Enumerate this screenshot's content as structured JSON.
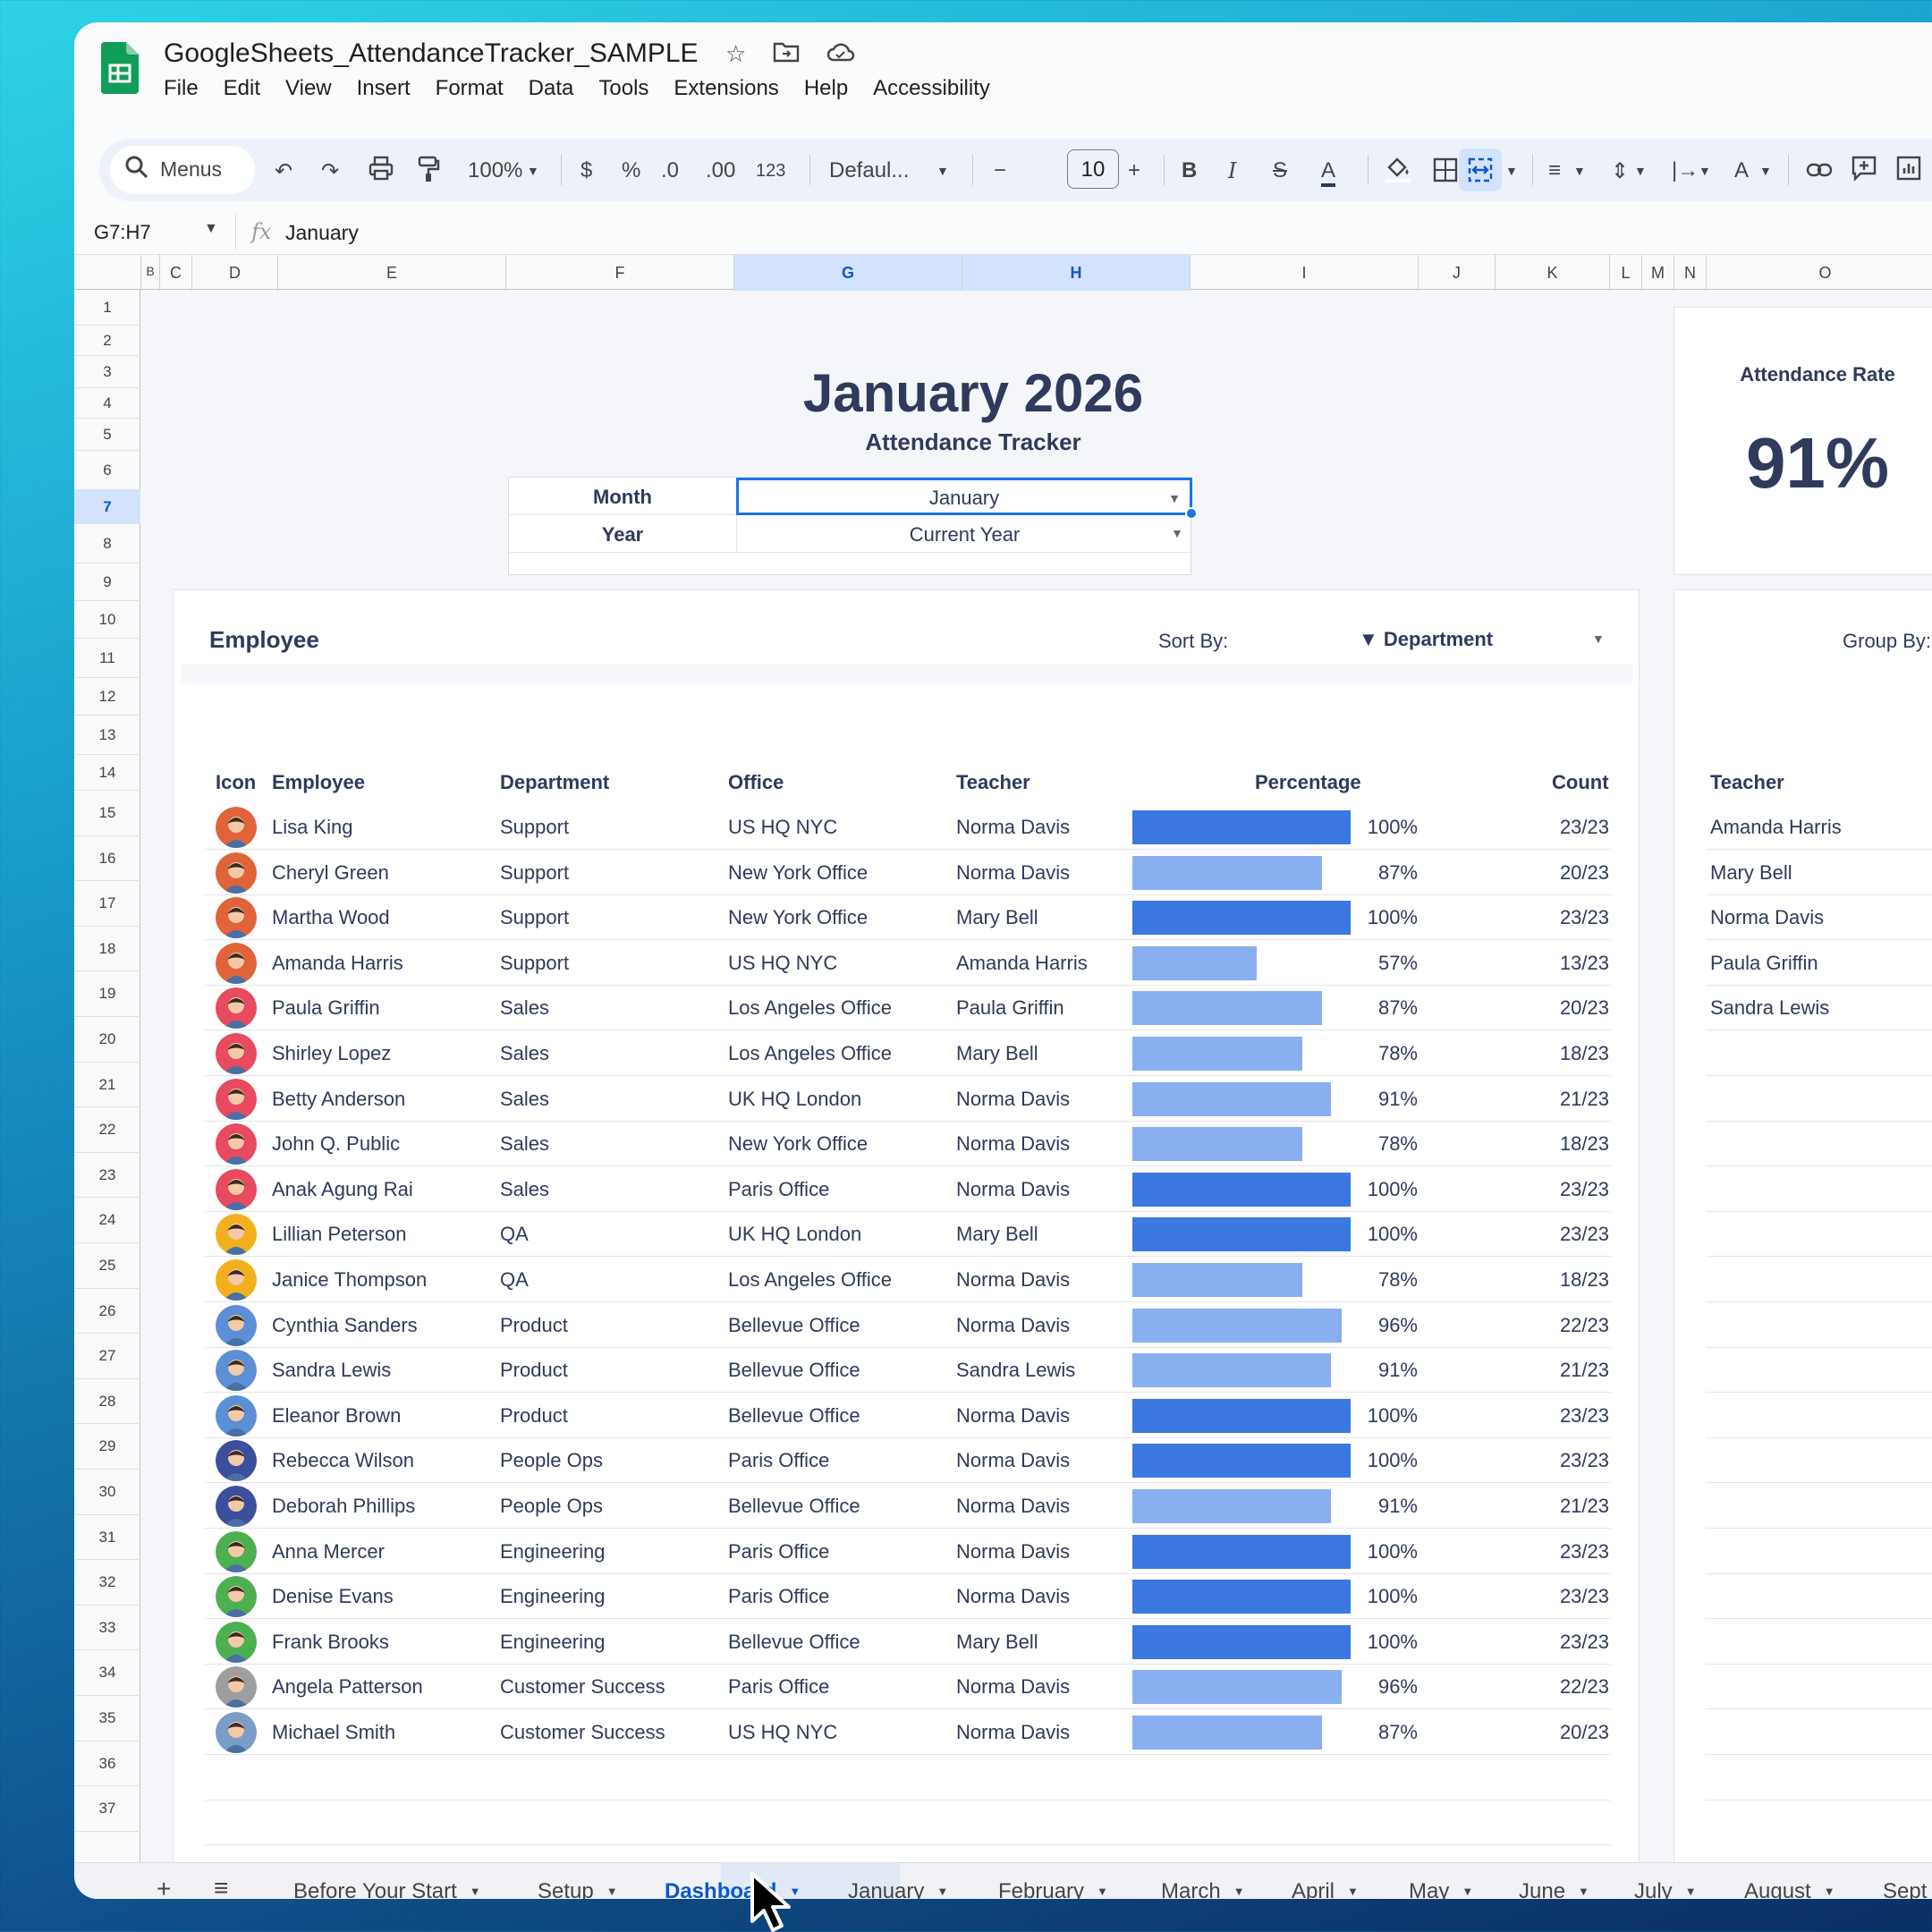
{
  "app": {
    "doc_title": "GoogleSheets_AttendanceTracker_SAMPLE",
    "menu": [
      "File",
      "Edit",
      "View",
      "Insert",
      "Format",
      "Data",
      "Tools",
      "Extensions",
      "Help",
      "Accessibility"
    ]
  },
  "toolbar": {
    "search_label": "Menus",
    "zoom": "100%",
    "currency": "$",
    "percent": "%",
    "dec_decrease": ".0",
    "dec_increase": ".00",
    "number_format": "123",
    "font": "Defaul...",
    "font_size": "10",
    "bold": "B",
    "italic": "I"
  },
  "formula_bar": {
    "name_box": "G7:H7",
    "fx": "fx",
    "value": "January"
  },
  "columns": [
    "B",
    "C",
    "D",
    "E",
    "F",
    "G",
    "H",
    "I",
    "J",
    "K",
    "L",
    "M",
    "N",
    "O"
  ],
  "rows": [
    "1",
    "2",
    "3",
    "4",
    "5",
    "6",
    "7",
    "8",
    "9",
    "10",
    "11",
    "12",
    "13",
    "14",
    "15",
    "16",
    "17",
    "18",
    "19",
    "20",
    "21",
    "22",
    "23",
    "24",
    "25",
    "26",
    "27",
    "28",
    "29",
    "30",
    "31",
    "32",
    "33",
    "34",
    "35",
    "36",
    "37"
  ],
  "dashboard": {
    "title": "January 2026",
    "subtitle": "Attendance Tracker",
    "month_label": "Month",
    "month_value": "January",
    "year_label": "Year",
    "year_value": "Current Year",
    "rate_label": "Attendance Rate",
    "rate_value": "91%",
    "employee_heading": "Employee",
    "sort_label": "Sort By:",
    "sort_value": "Department",
    "group_label": "Group By:",
    "headers": {
      "icon": "Icon",
      "employee": "Employee",
      "department": "Department",
      "office": "Office",
      "teacher": "Teacher",
      "percentage": "Percentage",
      "count": "Count"
    },
    "employees": [
      {
        "name": "Lisa King",
        "department": "Support",
        "office": "US HQ NYC",
        "teacher": "Norma Davis",
        "percent": 100,
        "percent_label": "100%",
        "count": "23/23",
        "avatar_color": "#e0633a"
      },
      {
        "name": "Cheryl Green",
        "department": "Support",
        "office": "New York Office",
        "teacher": "Norma Davis",
        "percent": 87,
        "percent_label": "87%",
        "count": "20/23",
        "avatar_color": "#e0633a"
      },
      {
        "name": "Martha Wood",
        "department": "Support",
        "office": "New York Office",
        "teacher": "Mary Bell",
        "percent": 100,
        "percent_label": "100%",
        "count": "23/23",
        "avatar_color": "#e0633a"
      },
      {
        "name": "Amanda Harris",
        "department": "Support",
        "office": "US HQ NYC",
        "teacher": "Amanda Harris",
        "percent": 57,
        "percent_label": "57%",
        "count": "13/23",
        "avatar_color": "#e0633a"
      },
      {
        "name": "Paula Griffin",
        "department": "Sales",
        "office": "Los Angeles Office",
        "teacher": "Paula Griffin",
        "percent": 87,
        "percent_label": "87%",
        "count": "20/23",
        "avatar_color": "#e84a5f"
      },
      {
        "name": "Shirley Lopez",
        "department": "Sales",
        "office": "Los Angeles Office",
        "teacher": "Mary Bell",
        "percent": 78,
        "percent_label": "78%",
        "count": "18/23",
        "avatar_color": "#e84a5f"
      },
      {
        "name": "Betty Anderson",
        "department": "Sales",
        "office": "UK HQ London",
        "teacher": "Norma Davis",
        "percent": 91,
        "percent_label": "91%",
        "count": "21/23",
        "avatar_color": "#e84a5f"
      },
      {
        "name": "John Q. Public",
        "department": "Sales",
        "office": "New York Office",
        "teacher": "Norma Davis",
        "percent": 78,
        "percent_label": "78%",
        "count": "18/23",
        "avatar_color": "#e84a5f"
      },
      {
        "name": "Anak Agung Rai",
        "department": "Sales",
        "office": "Paris Office",
        "teacher": "Norma Davis",
        "percent": 100,
        "percent_label": "100%",
        "count": "23/23",
        "avatar_color": "#e84a5f"
      },
      {
        "name": "Lillian Peterson",
        "department": "QA",
        "office": "UK HQ London",
        "teacher": "Mary Bell",
        "percent": 100,
        "percent_label": "100%",
        "count": "23/23",
        "avatar_color": "#f2b01e"
      },
      {
        "name": "Janice Thompson",
        "department": "QA",
        "office": "Los Angeles Office",
        "teacher": "Norma Davis",
        "percent": 78,
        "percent_label": "78%",
        "count": "18/23",
        "avatar_color": "#f2b01e"
      },
      {
        "name": "Cynthia Sanders",
        "department": "Product",
        "office": "Bellevue Office",
        "teacher": "Norma Davis",
        "percent": 96,
        "percent_label": "96%",
        "count": "22/23",
        "avatar_color": "#5b8fd6"
      },
      {
        "name": "Sandra Lewis",
        "department": "Product",
        "office": "Bellevue Office",
        "teacher": "Sandra Lewis",
        "percent": 91,
        "percent_label": "91%",
        "count": "21/23",
        "avatar_color": "#5b8fd6"
      },
      {
        "name": "Eleanor Brown",
        "department": "Product",
        "office": "Bellevue Office",
        "teacher": "Norma Davis",
        "percent": 100,
        "percent_label": "100%",
        "count": "23/23",
        "avatar_color": "#5b8fd6"
      },
      {
        "name": "Rebecca Wilson",
        "department": "People Ops",
        "office": "Paris Office",
        "teacher": "Norma Davis",
        "percent": 100,
        "percent_label": "100%",
        "count": "23/23",
        "avatar_color": "#3d4e9c"
      },
      {
        "name": "Deborah Phillips",
        "department": "People Ops",
        "office": "Bellevue Office",
        "teacher": "Norma Davis",
        "percent": 91,
        "percent_label": "91%",
        "count": "21/23",
        "avatar_color": "#3d4e9c"
      },
      {
        "name": "Anna Mercer",
        "department": "Engineering",
        "office": "Paris Office",
        "teacher": "Norma Davis",
        "percent": 100,
        "percent_label": "100%",
        "count": "23/23",
        "avatar_color": "#4caf50"
      },
      {
        "name": "Denise Evans",
        "department": "Engineering",
        "office": "Paris Office",
        "teacher": "Norma Davis",
        "percent": 100,
        "percent_label": "100%",
        "count": "23/23",
        "avatar_color": "#4caf50"
      },
      {
        "name": "Frank Brooks",
        "department": "Engineering",
        "office": "Bellevue Office",
        "teacher": "Mary Bell",
        "percent": 100,
        "percent_label": "100%",
        "count": "23/23",
        "avatar_color": "#4caf50"
      },
      {
        "name": "Angela Patterson",
        "department": "Customer Success",
        "office": "Paris Office",
        "teacher": "Norma Davis",
        "percent": 96,
        "percent_label": "96%",
        "count": "22/23",
        "avatar_color": "#9e9e9e"
      },
      {
        "name": "Michael Smith",
        "department": "Customer Success",
        "office": "US HQ NYC",
        "teacher": "Norma Davis",
        "percent": 87,
        "percent_label": "87%",
        "count": "20/23",
        "avatar_color": "#7a9cc6"
      }
    ],
    "group_header": "Teacher",
    "teachers": [
      "Amanda Harris",
      "Mary Bell",
      "Norma Davis",
      "Paula Griffin",
      "Sandra Lewis"
    ]
  },
  "colors": {
    "bar_full": "#3b78e0",
    "bar_partial": "#8aaff0",
    "heading": "#2f3a5c",
    "selection": "#1a73e8"
  },
  "sheet_tabs": [
    "Before Your Start",
    "Setup",
    "Dashboard",
    "January",
    "February",
    "March",
    "April",
    "May",
    "June",
    "July",
    "August",
    "Sept"
  ],
  "active_tab": "Dashboard"
}
